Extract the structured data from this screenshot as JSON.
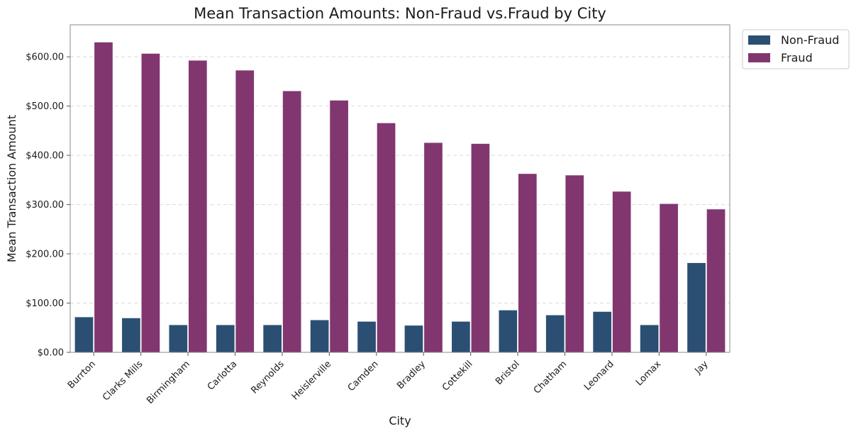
{
  "chart_data": {
    "type": "bar",
    "title": "Mean Transaction Amounts: Non-Fraud vs.Fraud by City",
    "xlabel": "City",
    "ylabel": "Mean Transaction Amount",
    "ylim": [
      0,
      665
    ],
    "y_ticks": [
      {
        "value": 0,
        "label": "$0.00"
      },
      {
        "value": 100,
        "label": "$100.00"
      },
      {
        "value": 200,
        "label": "$200.00"
      },
      {
        "value": 300,
        "label": "$300.00"
      },
      {
        "value": 400,
        "label": "$400.00"
      },
      {
        "value": 500,
        "label": "$500.00"
      },
      {
        "value": 600,
        "label": "$600.00"
      }
    ],
    "grid": "horizontal dashed",
    "legend_position": "outside top-right",
    "categories": [
      "Burrton",
      "Clarks Mills",
      "Birmingham",
      "Carlotta",
      "Reynolds",
      "Heislerville",
      "Camden",
      "Bradley",
      "Cottekill",
      "Bristol",
      "Chatham",
      "Leonard",
      "Lomax",
      "Jay"
    ],
    "series": [
      {
        "name": "Non-Fraud",
        "color": "#2b4f72",
        "values": [
          72,
          70,
          56,
          56,
          56,
          66,
          63,
          55,
          63,
          86,
          76,
          83,
          56,
          182
        ]
      },
      {
        "name": "Fraud",
        "color": "#82366f",
        "values": [
          630,
          607,
          593,
          573,
          531,
          512,
          466,
          426,
          424,
          363,
          360,
          327,
          302,
          291
        ]
      }
    ]
  }
}
